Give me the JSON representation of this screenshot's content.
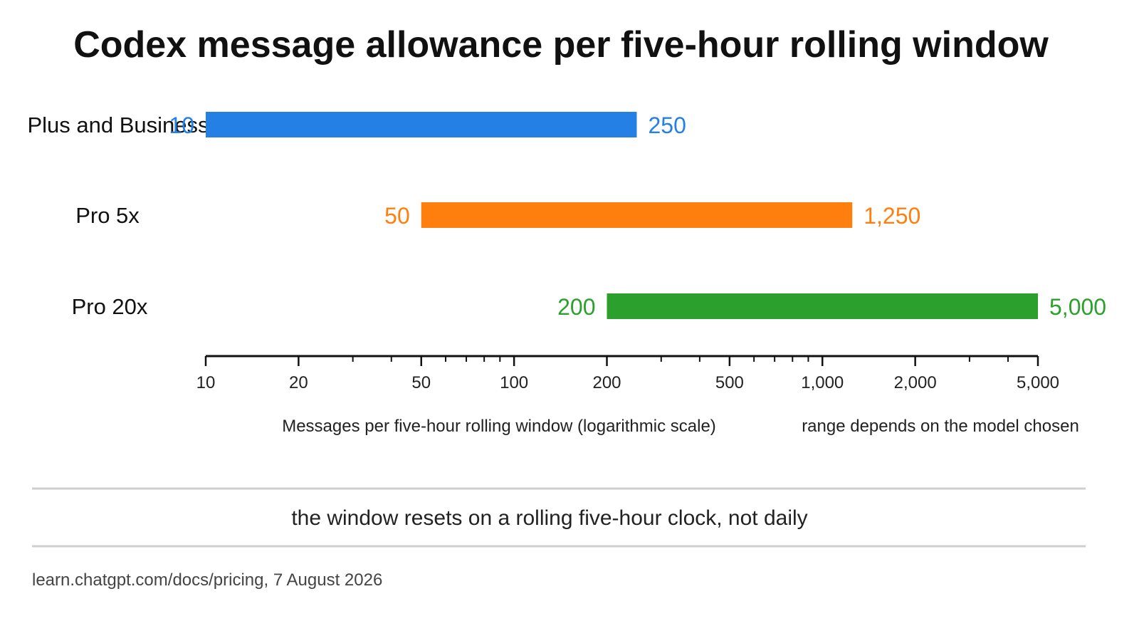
{
  "chart_data": {
    "type": "bar",
    "subtype": "floating-range-horizontal",
    "title": "Codex message allowance per five-hour rolling window",
    "categories": [
      "Plus and Business",
      "Pro 5x",
      "Pro 20x"
    ],
    "ranges": [
      {
        "category": "Plus and Business",
        "low": 10,
        "high": 250,
        "low_label": "10",
        "high_label": "250",
        "color": "#2580e6"
      },
      {
        "category": "Pro 5x",
        "low": 50,
        "high": 1250,
        "low_label": "50",
        "high_label": "1,250",
        "color": "#ff7f0e"
      },
      {
        "category": "Pro 20x",
        "low": 200,
        "high": 5000,
        "low_label": "200",
        "high_label": "5,000",
        "color": "#2ca02c"
      }
    ],
    "xscale": "log",
    "xlim": [
      10,
      5000
    ],
    "xticks": [
      10,
      20,
      50,
      100,
      200,
      500,
      1000,
      2000,
      5000
    ],
    "xtick_labels": [
      "10",
      "20",
      "50",
      "100",
      "200",
      "500",
      "1,000",
      "2,000",
      "5,000"
    ],
    "xlabel": "Messages per five-hour rolling window (logarithmic scale)",
    "axis_note": "range depends on the model chosen",
    "grid": false
  },
  "footnote": "the window resets on a rolling five-hour clock, not daily",
  "source": "learn.chatgpt.com/docs/pricing, 7 August 2026"
}
